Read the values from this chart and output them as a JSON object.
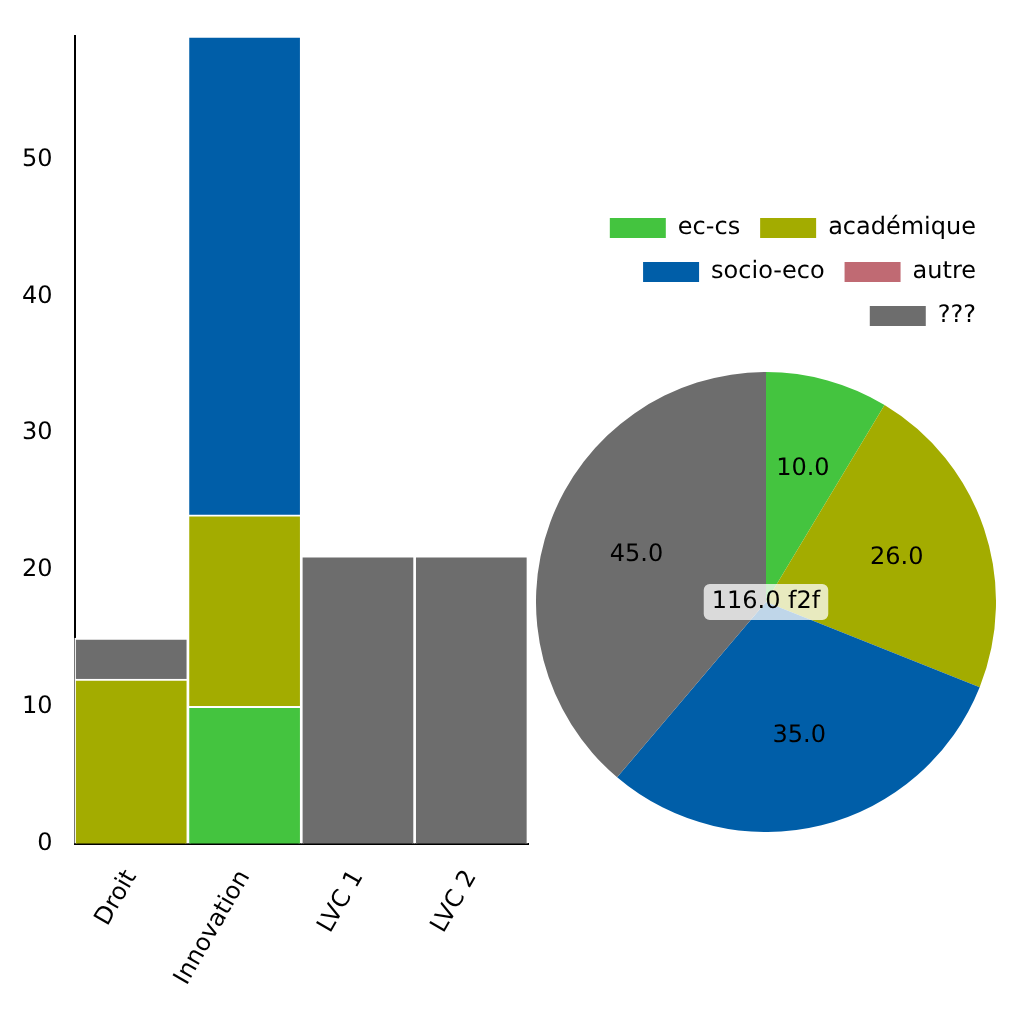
{
  "chart_data": [
    {
      "type": "bar",
      "stacked": true,
      "categories": [
        "Droit",
        "Innovation",
        "LVC 1",
        "LVC 2"
      ],
      "ylim": [
        0,
        59
      ],
      "yticks": [
        0,
        10,
        20,
        30,
        40,
        50
      ],
      "grid": false,
      "legend": false,
      "series": [
        {
          "color": "#44c43f",
          "values": [
            null,
            10,
            null,
            null
          ]
        },
        {
          "color": "#a3ac00",
          "values": [
            12,
            14,
            null,
            null
          ]
        },
        {
          "color": "#005ea8",
          "values": [
            null,
            35,
            null,
            null
          ]
        },
        {
          "color": "#6d6d6d",
          "values": [
            3,
            null,
            21,
            21
          ]
        }
      ]
    },
    {
      "type": "pie",
      "categories": [
        "ec-cs",
        "académique",
        "socio-eco",
        "autre",
        "???"
      ],
      "values": [
        10,
        26,
        35,
        0,
        45
      ],
      "colors": [
        "#44c43f",
        "#a3ac00",
        "#005ea8",
        "#c06a73",
        "#6d6d6d"
      ],
      "value_labels": [
        "10.0",
        "26.0",
        "35.0",
        null,
        "45.0"
      ],
      "legend": "top right",
      "annotations": [
        "116.0 f2f"
      ]
    }
  ]
}
